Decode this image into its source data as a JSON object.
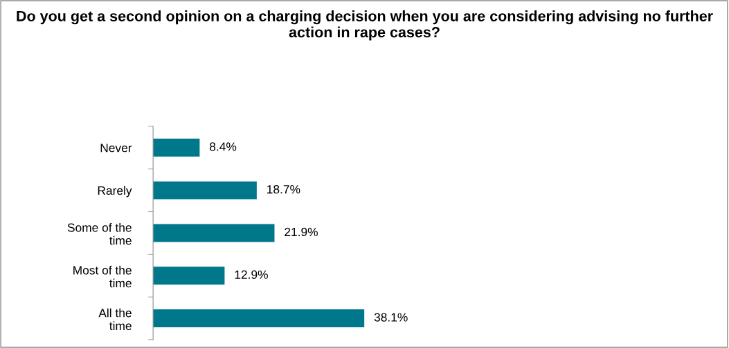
{
  "chart_data": {
    "type": "bar",
    "orientation": "horizontal",
    "title": "Do you get a second opinion on a charging decision when you are considering advising no further action in rape cases?",
    "categories": [
      "Never",
      "Rarely",
      "Some of the time",
      "Most of the time",
      "All the time"
    ],
    "values": [
      8.4,
      18.7,
      21.9,
      12.9,
      38.1
    ],
    "value_labels": [
      "8.4%",
      "18.7%",
      "21.9%",
      "12.9%",
      "38.1%"
    ],
    "color": "#00788c",
    "grid": false,
    "legend": false
  }
}
